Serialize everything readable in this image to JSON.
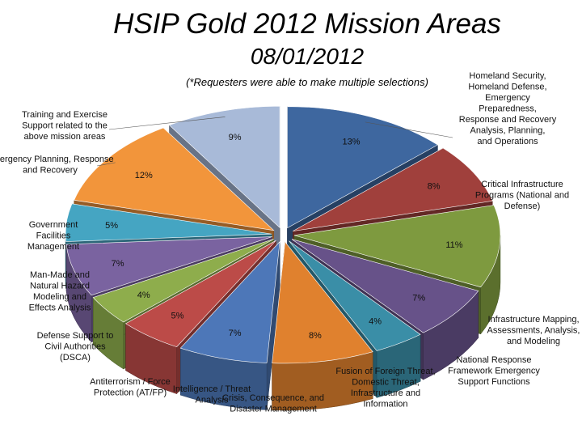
{
  "chart_data": {
    "type": "pie",
    "title": "HSIP Gold 2012 Mission Areas",
    "subtitle": "08/01/2012",
    "note": "(*Requesters were able to make multiple selections)",
    "slices": [
      {
        "label": "Homeland Security, Homeland Defense, Emergency Preparedness, Response and Recovery Analysis, Planning, and Operations",
        "percent_label": "13%",
        "value": 13,
        "color": "#3e679f"
      },
      {
        "label": "Critical Infrastructure Programs (National and Defense)",
        "percent_label": "8%",
        "value": 8,
        "color": "#a0403c"
      },
      {
        "label": "Infrastructure Mapping, Assessments, Analysis, and Modeling",
        "percent_label": "11%",
        "value": 11,
        "color": "#7e9a3f"
      },
      {
        "label": "National Response Framework Emergency Support Functions",
        "percent_label": "7%",
        "value": 7,
        "color": "#675289"
      },
      {
        "label": "Fusion of Foreign Threat, Domestic Threat, Infrastructure and Information",
        "percent_label": "4%",
        "value": 4,
        "color": "#3a8ea7"
      },
      {
        "label": "Crisis, Consequence, and Disaster Management",
        "percent_label": "8%",
        "value": 8,
        "color": "#e0812e"
      },
      {
        "label": "Intelligence / Threat Analysis",
        "percent_label": "7%",
        "value": 7,
        "color": "#4d77b8"
      },
      {
        "label": "Antiterrorism / Force Protection (AT/FP)",
        "percent_label": "5%",
        "value": 5,
        "color": "#bc4b48"
      },
      {
        "label": "Defense Support to Civil Authorities (DSCA)",
        "percent_label": "4%",
        "value": 4,
        "color": "#8ead4c"
      },
      {
        "label": "Man-Made and Natural Hazard Modeling and Effects Analysis",
        "percent_label": "7%",
        "value": 7,
        "color": "#7a63a0"
      },
      {
        "label": "Government Facilities Management",
        "percent_label": "5%",
        "value": 5,
        "color": "#45a5c2"
      },
      {
        "label": "Emergency Planning, Response and Recovery",
        "percent_label": "12%",
        "value": 12,
        "color": "#f2953b"
      },
      {
        "label": "Training and Exercise Support related to the above mission areas",
        "percent_label": "9%",
        "value": 9,
        "color": "#a8bad8"
      }
    ]
  }
}
